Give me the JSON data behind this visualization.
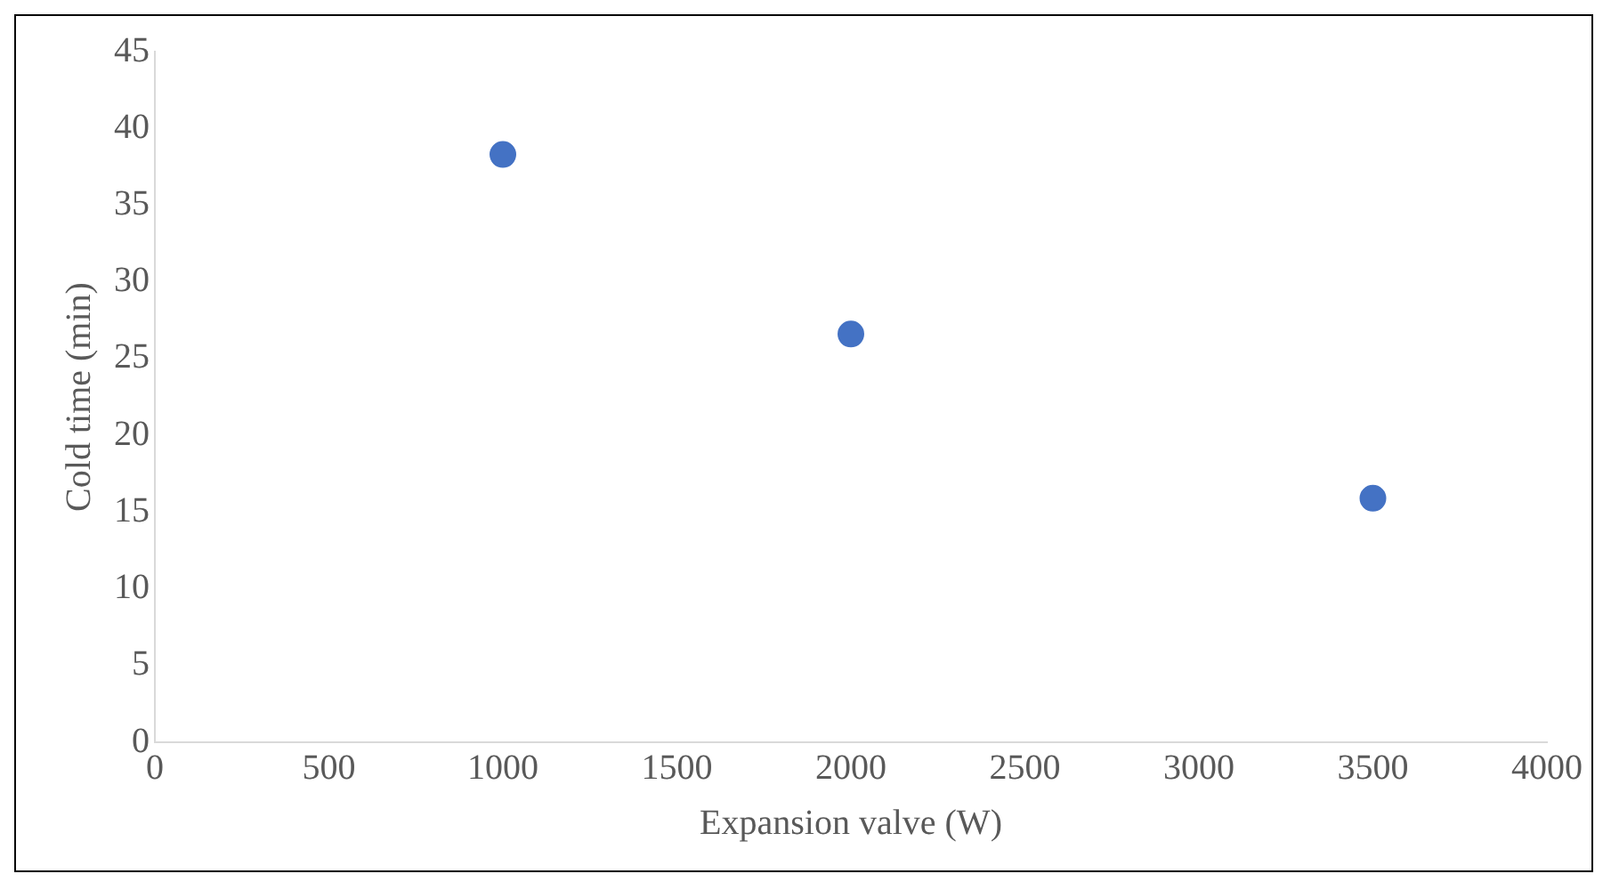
{
  "chart_data": {
    "type": "scatter",
    "xlabel": "Expansion valve (W)",
    "ylabel": "Cold time (min)",
    "x": [
      1000,
      2000,
      3500
    ],
    "values": [
      38.3,
      26.6,
      15.9
    ],
    "color": "#4472c4",
    "xlim": [
      0,
      4000
    ],
    "xticks": [
      0,
      500,
      1000,
      1500,
      2000,
      2500,
      3000,
      3500,
      4000
    ],
    "ylim": [
      0,
      45
    ],
    "yticks": [
      0,
      5,
      10,
      15,
      20,
      25,
      30,
      35,
      40,
      45
    ],
    "grid": false,
    "legend": false,
    "marker": "circle"
  }
}
